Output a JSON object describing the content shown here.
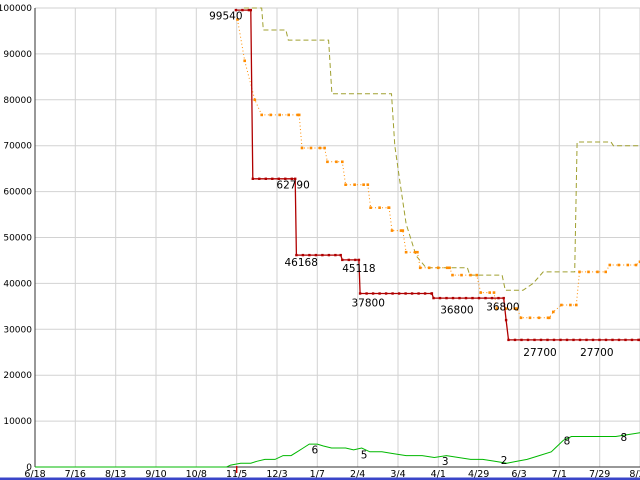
{
  "page": {
    "title": "price-history-chart"
  },
  "chart_data": {
    "type": "line",
    "title": "",
    "grid": true,
    "legend": "none",
    "ylim": [
      0,
      100000
    ],
    "y_ticks": [
      0,
      10000,
      20000,
      30000,
      40000,
      50000,
      60000,
      70000,
      80000,
      90000,
      100000
    ],
    "x_tick_labels": [
      "6/18",
      "7/16",
      "8/13",
      "9/10",
      "10/8",
      "11/5",
      "12/3",
      "1/7",
      "2/4",
      "3/4",
      "4/1",
      "4/29",
      "6/3",
      "7/1",
      "7/29",
      "8/26"
    ],
    "colors": {
      "background": "#ffffff",
      "grid": "#d2d2d2",
      "axis": "#303030",
      "tick_text": "#000000",
      "annotation_text": "#000000",
      "start_tick": "#cc0000",
      "bottom_rule": "#3a45c8"
    },
    "start_marker": {
      "x": 5
    },
    "series": [
      {
        "name": "highest-price-olive-dashed",
        "color": "#a0a030",
        "style": "dashed",
        "markers": false,
        "width": 1,
        "points": [
          [
            5.18,
            100000
          ],
          [
            5.62,
            100000
          ],
          [
            5.66,
            95200
          ],
          [
            6.22,
            95200
          ],
          [
            6.28,
            93000
          ],
          [
            7.28,
            93000
          ],
          [
            7.36,
            81300
          ],
          [
            8.84,
            81300
          ],
          [
            8.92,
            70000
          ],
          [
            9.05,
            62000
          ],
          [
            9.2,
            53000
          ],
          [
            9.45,
            46000
          ],
          [
            9.7,
            43400
          ],
          [
            10.72,
            43400
          ],
          [
            10.78,
            41800
          ],
          [
            11.58,
            41800
          ],
          [
            11.66,
            38500
          ],
          [
            12.1,
            38500
          ],
          [
            12.35,
            40000
          ],
          [
            12.6,
            42500
          ],
          [
            13.38,
            42500
          ],
          [
            13.44,
            70800
          ],
          [
            14.28,
            70800
          ],
          [
            14.34,
            70000
          ],
          [
            15,
            70000
          ]
        ]
      },
      {
        "name": "used-price-orange-dotted",
        "color": "#ff8c00",
        "style": "dotted",
        "markers": true,
        "marker_size": 2.6,
        "marker_step": 9,
        "width": 1,
        "points": [
          [
            5.02,
            97500
          ],
          [
            5.2,
            88500
          ],
          [
            5.45,
            80000
          ],
          [
            5.62,
            76700
          ],
          [
            6.55,
            76700
          ],
          [
            6.62,
            69500
          ],
          [
            7.18,
            69500
          ],
          [
            7.25,
            66500
          ],
          [
            7.62,
            66500
          ],
          [
            7.7,
            61500
          ],
          [
            8.25,
            61500
          ],
          [
            8.32,
            56500
          ],
          [
            8.78,
            56500
          ],
          [
            8.85,
            51500
          ],
          [
            9.12,
            51500
          ],
          [
            9.2,
            46800
          ],
          [
            9.48,
            46800
          ],
          [
            9.55,
            43400
          ],
          [
            10.28,
            43400
          ],
          [
            10.35,
            41800
          ],
          [
            10.95,
            41800
          ],
          [
            11.05,
            38000
          ],
          [
            11.38,
            38000
          ],
          [
            11.45,
            34500
          ],
          [
            11.95,
            34500
          ],
          [
            12.05,
            32500
          ],
          [
            12.75,
            32500
          ],
          [
            12.85,
            33800
          ],
          [
            13.05,
            35300
          ],
          [
            13.42,
            35300
          ],
          [
            13.5,
            42500
          ],
          [
            14.15,
            42500
          ],
          [
            14.25,
            44000
          ],
          [
            14.9,
            44000
          ],
          [
            15,
            44700
          ]
        ]
      },
      {
        "name": "lowest-price-red-solid",
        "color": "#b00000",
        "style": "solid",
        "markers": true,
        "marker_size": 2.4,
        "marker_step": 6.5,
        "width": 1.3,
        "points": [
          [
            4.98,
            99540
          ],
          [
            5.35,
            99540
          ],
          [
            5.4,
            62790
          ],
          [
            6.45,
            62790
          ],
          [
            6.48,
            46168
          ],
          [
            7.58,
            46168
          ],
          [
            7.62,
            45118
          ],
          [
            8.03,
            45118
          ],
          [
            8.06,
            37800
          ],
          [
            9.84,
            37800
          ],
          [
            9.88,
            36800
          ],
          [
            11.62,
            36800
          ],
          [
            11.68,
            32000
          ],
          [
            11.74,
            27700
          ],
          [
            15,
            27700
          ]
        ]
      },
      {
        "name": "stock-count-green",
        "color": "#00b800",
        "style": "solid",
        "markers": false,
        "width": 1,
        "value_factor": 830,
        "points": [
          [
            0,
            0
          ],
          [
            4.75,
            0
          ],
          [
            4.85,
            0.5
          ],
          [
            5.1,
            1
          ],
          [
            5.35,
            1
          ],
          [
            5.5,
            1.5
          ],
          [
            5.7,
            2
          ],
          [
            5.95,
            2
          ],
          [
            6.15,
            3
          ],
          [
            6.35,
            3
          ],
          [
            6.5,
            4
          ],
          [
            6.65,
            5
          ],
          [
            6.8,
            6
          ],
          [
            7.0,
            6
          ],
          [
            7.15,
            5.5
          ],
          [
            7.35,
            5
          ],
          [
            7.7,
            5
          ],
          [
            7.9,
            4.5
          ],
          [
            8.1,
            5
          ],
          [
            8.3,
            4
          ],
          [
            8.6,
            4
          ],
          [
            8.9,
            3.5
          ],
          [
            9.2,
            3
          ],
          [
            9.6,
            3
          ],
          [
            9.9,
            2.5
          ],
          [
            10.2,
            3
          ],
          [
            10.5,
            2.5
          ],
          [
            10.8,
            2
          ],
          [
            11.1,
            2
          ],
          [
            11.4,
            1.5
          ],
          [
            11.7,
            1
          ],
          [
            11.95,
            1.5
          ],
          [
            12.2,
            2
          ],
          [
            12.5,
            3
          ],
          [
            12.8,
            4
          ],
          [
            12.9,
            5
          ],
          [
            13.1,
            7
          ],
          [
            13.3,
            8
          ],
          [
            13.8,
            8
          ],
          [
            14.1,
            8
          ],
          [
            14.4,
            8
          ],
          [
            14.7,
            8.5
          ],
          [
            15,
            9
          ]
        ]
      }
    ],
    "annotations": [
      {
        "text": "99540",
        "x": 4.73,
        "y": 98300
      },
      {
        "text": "62790",
        "x": 6.4,
        "y": 61400
      },
      {
        "text": "46168",
        "x": 6.6,
        "y": 44600
      },
      {
        "text": "45118",
        "x": 8.03,
        "y": 43300
      },
      {
        "text": "37800",
        "x": 8.26,
        "y": 35700
      },
      {
        "text": "36800",
        "x": 10.46,
        "y": 34200
      },
      {
        "text": "36800",
        "x": 11.6,
        "y": 34900
      },
      {
        "text": "27700",
        "x": 12.52,
        "y": 25000
      },
      {
        "text": "27700",
        "x": 13.93,
        "y": 25000
      },
      {
        "text": "6",
        "x": 6.94,
        "y": 3700
      },
      {
        "text": "5",
        "x": 8.16,
        "y": 2600
      },
      {
        "text": "3",
        "x": 10.17,
        "y": 1200
      },
      {
        "text": "2",
        "x": 11.63,
        "y": 1400
      },
      {
        "text": "8",
        "x": 13.19,
        "y": 5700
      },
      {
        "text": "8",
        "x": 14.6,
        "y": 6400
      }
    ]
  }
}
